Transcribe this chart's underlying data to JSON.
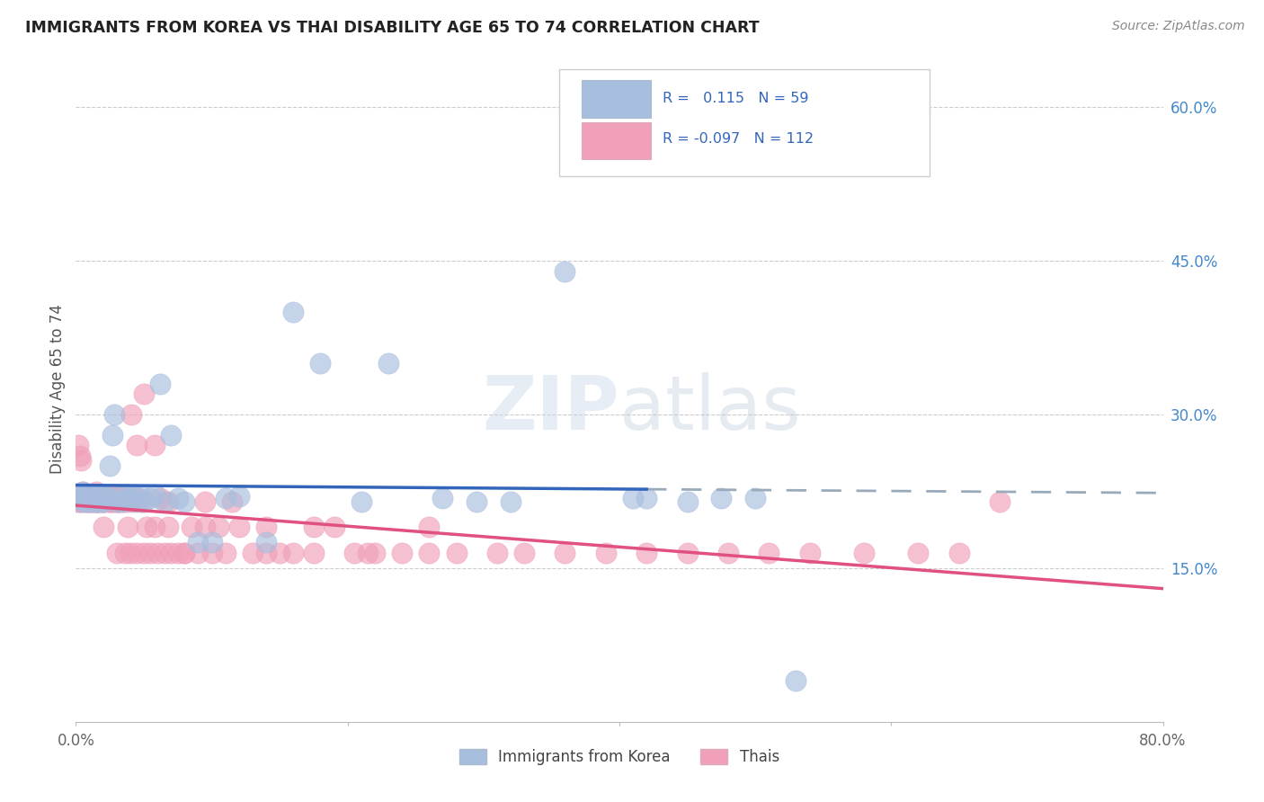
{
  "title": "IMMIGRANTS FROM KOREA VS THAI DISABILITY AGE 65 TO 74 CORRELATION CHART",
  "source": "Source: ZipAtlas.com",
  "ylabel": "Disability Age 65 to 74",
  "xlim": [
    0.0,
    0.8
  ],
  "ylim": [
    0.0,
    0.65
  ],
  "xticks": [
    0.0,
    0.2,
    0.4,
    0.6,
    0.8
  ],
  "xtick_labels": [
    "0.0%",
    "",
    "",
    "",
    "80.0%"
  ],
  "ytick_labels_right": [
    "15.0%",
    "30.0%",
    "45.0%",
    "60.0%"
  ],
  "ytick_vals_right": [
    0.15,
    0.3,
    0.45,
    0.6
  ],
  "korea_color": "#a8bede",
  "thai_color": "#f0a0b8",
  "korea_trend_color": "#3366bb",
  "thai_trend_color": "#e05080",
  "dashed_trend_color": "#99aabb",
  "watermark_color": "#ccd8e8",
  "korea_R": 0.115,
  "korea_N": 59,
  "thai_R": -0.097,
  "thai_N": 112,
  "korea_x": [
    0.003,
    0.004,
    0.005,
    0.006,
    0.007,
    0.008,
    0.009,
    0.01,
    0.011,
    0.012,
    0.013,
    0.014,
    0.015,
    0.016,
    0.017,
    0.018,
    0.019,
    0.02,
    0.021,
    0.022,
    0.023,
    0.025,
    0.027,
    0.028,
    0.03,
    0.032,
    0.035,
    0.038,
    0.04,
    0.042,
    0.045,
    0.048,
    0.05,
    0.055,
    0.058,
    0.062,
    0.065,
    0.07,
    0.075,
    0.08,
    0.09,
    0.1,
    0.11,
    0.12,
    0.14,
    0.16,
    0.18,
    0.21,
    0.23,
    0.27,
    0.295,
    0.32,
    0.36,
    0.41,
    0.42,
    0.45,
    0.475,
    0.5,
    0.53
  ],
  "korea_y": [
    0.22,
    0.215,
    0.225,
    0.218,
    0.22,
    0.215,
    0.22,
    0.218,
    0.222,
    0.215,
    0.22,
    0.218,
    0.215,
    0.22,
    0.215,
    0.22,
    0.218,
    0.215,
    0.222,
    0.218,
    0.22,
    0.25,
    0.28,
    0.3,
    0.215,
    0.22,
    0.215,
    0.222,
    0.218,
    0.222,
    0.215,
    0.22,
    0.215,
    0.218,
    0.222,
    0.33,
    0.215,
    0.28,
    0.218,
    0.215,
    0.175,
    0.175,
    0.218,
    0.22,
    0.175,
    0.4,
    0.35,
    0.215,
    0.35,
    0.218,
    0.215,
    0.215,
    0.44,
    0.218,
    0.218,
    0.215,
    0.218,
    0.218,
    0.04
  ],
  "thai_x": [
    0.002,
    0.003,
    0.004,
    0.005,
    0.006,
    0.007,
    0.008,
    0.009,
    0.01,
    0.01,
    0.012,
    0.013,
    0.014,
    0.015,
    0.015,
    0.016,
    0.017,
    0.018,
    0.019,
    0.02,
    0.02,
    0.022,
    0.023,
    0.024,
    0.025,
    0.026,
    0.027,
    0.028,
    0.029,
    0.03,
    0.031,
    0.032,
    0.033,
    0.035,
    0.036,
    0.037,
    0.038,
    0.04,
    0.041,
    0.042,
    0.043,
    0.045,
    0.046,
    0.048,
    0.05,
    0.052,
    0.055,
    0.058,
    0.06,
    0.062,
    0.065,
    0.068,
    0.07,
    0.075,
    0.08,
    0.085,
    0.09,
    0.095,
    0.1,
    0.105,
    0.11,
    0.12,
    0.13,
    0.14,
    0.15,
    0.16,
    0.175,
    0.19,
    0.205,
    0.22,
    0.24,
    0.26,
    0.28,
    0.31,
    0.33,
    0.36,
    0.39,
    0.42,
    0.45,
    0.48,
    0.51,
    0.54,
    0.58,
    0.62,
    0.65,
    0.68,
    0.001,
    0.003,
    0.006,
    0.008,
    0.011,
    0.014,
    0.016,
    0.019,
    0.021,
    0.025,
    0.028,
    0.031,
    0.034,
    0.038,
    0.041,
    0.045,
    0.05,
    0.058,
    0.068,
    0.08,
    0.095,
    0.115,
    0.14,
    0.175,
    0.215,
    0.26
  ],
  "thai_y": [
    0.27,
    0.26,
    0.255,
    0.225,
    0.22,
    0.218,
    0.215,
    0.22,
    0.215,
    0.222,
    0.215,
    0.22,
    0.215,
    0.218,
    0.225,
    0.215,
    0.22,
    0.218,
    0.215,
    0.19,
    0.215,
    0.218,
    0.22,
    0.215,
    0.218,
    0.222,
    0.215,
    0.22,
    0.218,
    0.165,
    0.215,
    0.215,
    0.22,
    0.215,
    0.165,
    0.218,
    0.215,
    0.165,
    0.218,
    0.215,
    0.22,
    0.165,
    0.218,
    0.215,
    0.165,
    0.19,
    0.165,
    0.19,
    0.165,
    0.218,
    0.165,
    0.19,
    0.165,
    0.165,
    0.165,
    0.19,
    0.165,
    0.19,
    0.165,
    0.19,
    0.165,
    0.19,
    0.165,
    0.19,
    0.165,
    0.165,
    0.19,
    0.19,
    0.165,
    0.165,
    0.165,
    0.19,
    0.165,
    0.165,
    0.165,
    0.165,
    0.165,
    0.165,
    0.165,
    0.165,
    0.165,
    0.165,
    0.165,
    0.165,
    0.165,
    0.215,
    0.215,
    0.215,
    0.215,
    0.215,
    0.215,
    0.215,
    0.215,
    0.215,
    0.215,
    0.215,
    0.215,
    0.215,
    0.218,
    0.19,
    0.3,
    0.27,
    0.32,
    0.27,
    0.215,
    0.165,
    0.215,
    0.215,
    0.165,
    0.165,
    0.165,
    0.165
  ]
}
